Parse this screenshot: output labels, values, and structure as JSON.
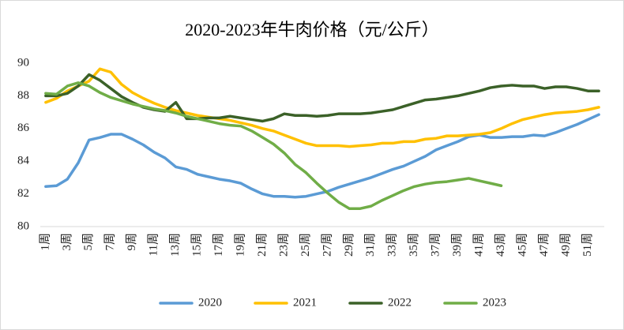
{
  "chart_data": {
    "type": "line",
    "title": "2020-2023年牛肉价格（元/公斤）",
    "categories": [
      "1周",
      null,
      "3周",
      null,
      "5周",
      null,
      "7周",
      null,
      "9周",
      null,
      "11周",
      null,
      "13周",
      null,
      "15周",
      null,
      "17周",
      null,
      "19周",
      null,
      "21周",
      null,
      "23周",
      null,
      "25周",
      null,
      "27周",
      null,
      "29周",
      null,
      "31周",
      null,
      "33周",
      null,
      "35周",
      null,
      "37周",
      null,
      "39周",
      null,
      "41周",
      null,
      "43周",
      null,
      "45周",
      null,
      "47周",
      null,
      "49周",
      null,
      "51周",
      null
    ],
    "ylim": [
      80,
      90
    ],
    "yticks": [
      80,
      82,
      84,
      86,
      88,
      90
    ],
    "grid": false,
    "legend": "bottom",
    "series": [
      {
        "name": "2020",
        "color": "#5b9bd5",
        "values": [
          82.45,
          82.5,
          82.9,
          83.9,
          85.3,
          85.45,
          85.65,
          85.65,
          85.35,
          85.0,
          84.55,
          84.2,
          83.65,
          83.5,
          83.2,
          83.05,
          82.9,
          82.8,
          82.65,
          82.3,
          82.0,
          81.85,
          81.85,
          81.8,
          81.85,
          82.0,
          82.15,
          82.4,
          82.6,
          82.8,
          83.0,
          83.25,
          83.5,
          83.7,
          84.0,
          84.3,
          84.7,
          84.95,
          85.2,
          85.5,
          85.6,
          85.45,
          85.45,
          85.5,
          85.5,
          85.6,
          85.55,
          85.75,
          86.0,
          86.25,
          86.55,
          86.85
        ]
      },
      {
        "name": "2021",
        "color": "#ffc000",
        "values": [
          87.6,
          87.85,
          88.3,
          88.6,
          88.9,
          89.65,
          89.45,
          88.7,
          88.2,
          87.85,
          87.55,
          87.3,
          87.1,
          86.95,
          86.8,
          86.7,
          86.6,
          86.5,
          86.35,
          86.2,
          86.0,
          85.85,
          85.6,
          85.35,
          85.1,
          84.95,
          84.95,
          84.95,
          84.9,
          84.95,
          85.0,
          85.1,
          85.1,
          85.2,
          85.2,
          85.35,
          85.4,
          85.55,
          85.55,
          85.6,
          85.65,
          85.75,
          86.0,
          86.3,
          86.55,
          86.7,
          86.85,
          86.95,
          87.0,
          87.05,
          87.15,
          87.3
        ]
      },
      {
        "name": "2022",
        "color": "#3b6128",
        "values": [
          88.0,
          88.0,
          88.15,
          88.6,
          89.3,
          88.95,
          88.45,
          87.95,
          87.6,
          87.3,
          87.15,
          87.05,
          87.6,
          86.6,
          86.6,
          86.65,
          86.65,
          86.75,
          86.65,
          86.55,
          86.45,
          86.6,
          86.9,
          86.8,
          86.8,
          86.75,
          86.8,
          86.9,
          86.9,
          86.9,
          86.95,
          87.05,
          87.15,
          87.35,
          87.55,
          87.75,
          87.8,
          87.9,
          88.0,
          88.15,
          88.3,
          88.5,
          88.6,
          88.65,
          88.6,
          88.6,
          88.45,
          88.55,
          88.55,
          88.45,
          88.3,
          88.3
        ]
      },
      {
        "name": "2023",
        "color": "#70ad47",
        "values": [
          88.15,
          88.1,
          88.6,
          88.8,
          88.6,
          88.2,
          87.9,
          87.7,
          87.5,
          87.35,
          87.2,
          87.1,
          86.95,
          86.75,
          86.6,
          86.45,
          86.3,
          86.2,
          86.15,
          85.85,
          85.45,
          85.05,
          84.5,
          83.8,
          83.3,
          82.65,
          82.05,
          81.5,
          81.1,
          81.1,
          81.25,
          81.6,
          81.9,
          82.2,
          82.45,
          82.6,
          82.7,
          82.75,
          82.85,
          82.95,
          82.8,
          82.65,
          82.5,
          null,
          null,
          null,
          null,
          null,
          null,
          null,
          null,
          null
        ]
      }
    ]
  }
}
